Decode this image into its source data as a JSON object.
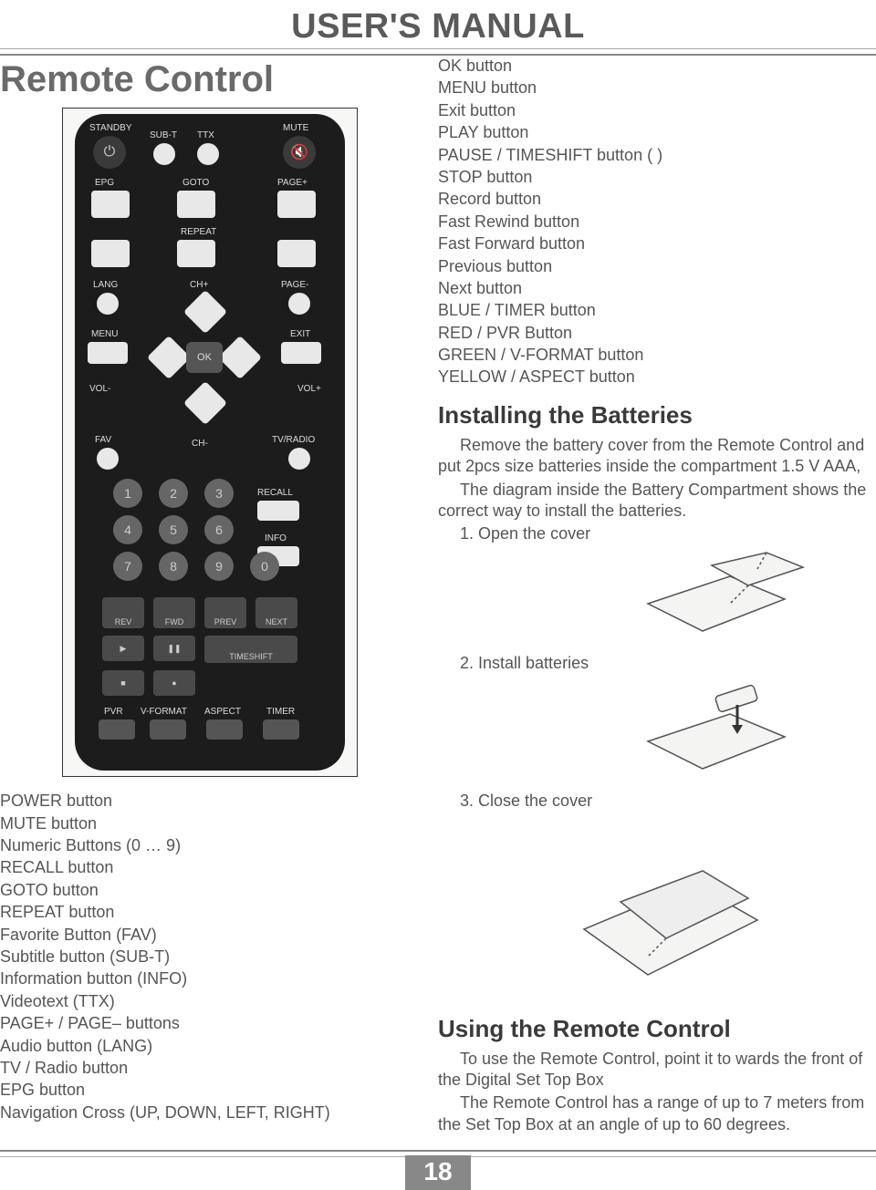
{
  "header": {
    "title": "USER'S MANUAL"
  },
  "section_title": "Remote Control",
  "page_number": "18",
  "right_button_list": [
    "OK button",
    "MENU button",
    "Exit button",
    "PLAY button",
    "PAUSE / TIMESHIFT button ( )",
    "STOP button",
    "Record button",
    "Fast Rewind button",
    "Fast Forward button",
    "Previous button",
    "Next button",
    "BLUE / TIMER button",
    "RED / PVR Button",
    "GREEN / V-FORMAT button",
    "YELLOW / ASPECT button"
  ],
  "battery": {
    "heading": "Installing the Batteries",
    "p1": "Remove the battery cover from the Remote Control and put 2pcs size batteries inside the compartment 1.5 V AAA,",
    "p2": "The diagram inside the Battery Compartment shows the correct way to install the batteries.",
    "step1": "1. Open the cover",
    "step2": "2. Install batteries",
    "step3": "3. Close the cover"
  },
  "left_button_list": [
    "POWER button",
    "MUTE button",
    "Numeric Buttons (0 … 9)",
    "RECALL button",
    "GOTO button",
    "REPEAT button",
    "Favorite Button (FAV)",
    "Subtitle button (SUB-T)",
    "Information button (INFO)",
    "Videotext (TTX)",
    "PAGE+ / PAGE– buttons",
    "Audio button (LANG)",
    "TV / Radio button",
    "EPG button",
    "Navigation Cross (UP, DOWN, LEFT, RIGHT)"
  ],
  "using": {
    "heading": "Using the Remote Control",
    "p1": "To use the Remote Control, point it to wards the front of the Digital Set Top Box",
    "p2": "The Remote Control has a range of up to 7 meters from the Set Top Box at an angle of up to 60 degrees."
  },
  "remote_labels": {
    "standby": "STANDBY",
    "subt": "SUB-T",
    "ttx": "TTX",
    "mute": "MUTE",
    "epg": "EPG",
    "goto": "GOTO",
    "pagep": "PAGE+",
    "repeat": "REPEAT",
    "lang": "LANG",
    "chp": "CH+",
    "pagem": "PAGE-",
    "menu": "MENU",
    "exit": "EXIT",
    "volm": "VOL-",
    "volp": "VOL+",
    "ok": "OK",
    "fav": "FAV",
    "chm": "CH-",
    "tvradio": "TV/RADIO",
    "recall": "RECALL",
    "info": "INFO",
    "rev": "REV",
    "fwd": "FWD",
    "prev": "PREV",
    "next": "NEXT",
    "timeshift": "TIMESHIFT",
    "pvr": "PVR",
    "vformat": "V-FORMAT",
    "aspect": "ASPECT",
    "timer": "TIMER",
    "n1": "1",
    "n2": "2",
    "n3": "3",
    "n4": "4",
    "n5": "5",
    "n6": "6",
    "n7": "7",
    "n8": "8",
    "n9": "9",
    "n0": "0"
  },
  "colors": {
    "text": "#4a4a4a",
    "rule": "#888888",
    "remote_body": "#1c1c1c",
    "remote_light": "#e8e8e8",
    "remote_grey": "#555555"
  }
}
